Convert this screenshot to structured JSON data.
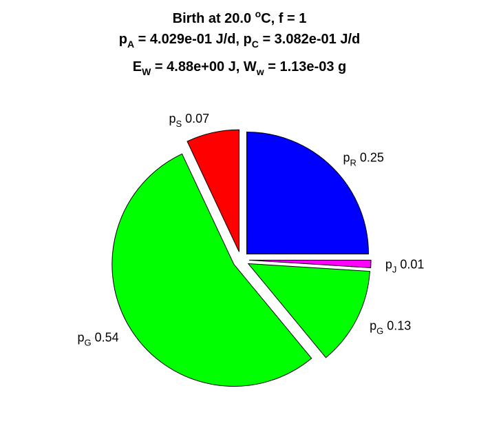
{
  "title": {
    "line1": {
      "text": "Birth at 20.0 ",
      "sup": "o",
      "tail": "C, f = 1"
    },
    "line2": {
      "p1": "p",
      "s1": "A",
      "v1": " = 4.029e-01 J/d, ",
      "p2": "p",
      "s2": "C",
      "v2": " = 3.082e-01 J/d"
    },
    "line3": {
      "p1": "E",
      "s1": "W",
      "v1": " = 4.88e+00 J, ",
      "p2": "W",
      "s2": "w",
      "v2": " = 1.13e-03 g"
    }
  },
  "chart_data": {
    "type": "pie",
    "exploded": true,
    "direction": "clockwise",
    "start_angle_deg": 0,
    "slices": [
      {
        "label_main": "p",
        "label_sub": "R",
        "value_text": "0.25",
        "value": 0.25,
        "color": "#0000ff",
        "label_pos": "upper-right"
      },
      {
        "label_main": "p",
        "label_sub": "J",
        "value_text": "0.01",
        "value": 0.01,
        "color": "#ff00ff",
        "label_pos": "right"
      },
      {
        "label_main": "p",
        "label_sub": "G",
        "value_text": "0.13",
        "value": 0.13,
        "color": "#00ff00",
        "label_pos": "lower-right"
      },
      {
        "label_main": "p",
        "label_sub": "G",
        "value_text": "0.54",
        "value": 0.54,
        "color": "#00ff00",
        "label_pos": "lower-left"
      },
      {
        "label_main": "p",
        "label_sub": "S",
        "value_text": "0.07",
        "value": 0.07,
        "color": "#ff0000",
        "label_pos": "top"
      }
    ]
  }
}
